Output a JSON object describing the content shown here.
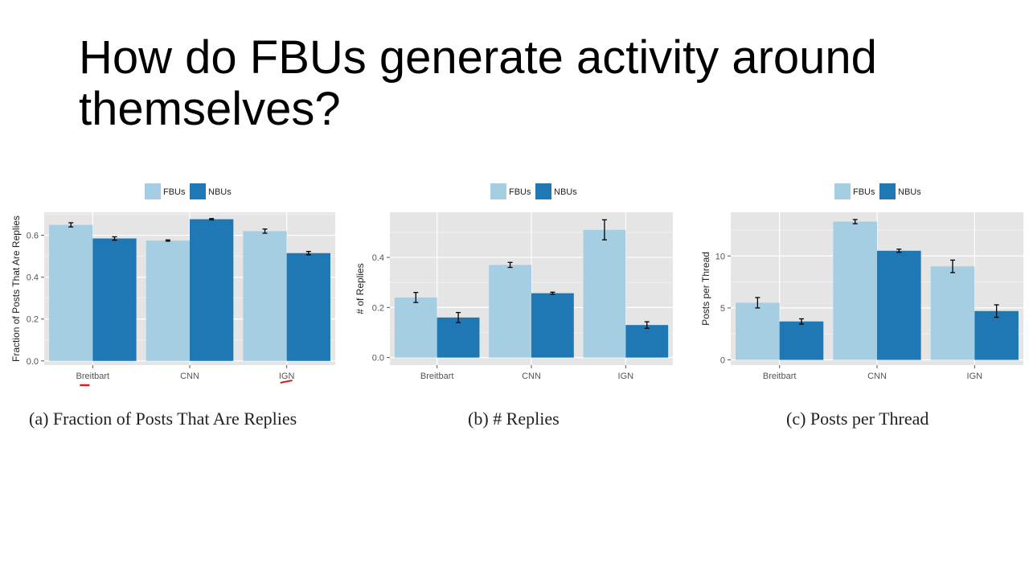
{
  "slide": {
    "title": "How do FBUs generate activity around themselves?"
  },
  "colors": {
    "fbu": "#a6cee3",
    "nbu": "#1f78b4",
    "panel_bg": "#e5e5e5",
    "grid": "#ffffff",
    "error_bar": "#000000",
    "annotation": "#e31a1c"
  },
  "chart_data": [
    {
      "type": "bar",
      "caption": "(a) Fraction of Posts That Are Replies",
      "ylabel": "Fraction of Posts That Are Replies",
      "xlabel": "",
      "categories": [
        "Breitbart",
        "CNN",
        "IGN"
      ],
      "legend": [
        "FBUs",
        "NBUs"
      ],
      "legend_position": "top",
      "ylim": [
        -0.02,
        0.71
      ],
      "yticks": [
        0.0,
        0.2,
        0.4,
        0.6
      ],
      "ytick_labels": [
        "0.0",
        "0.2",
        "0.4",
        "0.6"
      ],
      "grid": true,
      "series": [
        {
          "name": "FBUs",
          "values": [
            0.65,
            0.575,
            0.62
          ],
          "errors": [
            0.01,
            0.003,
            0.01
          ]
        },
        {
          "name": "NBUs",
          "values": [
            0.585,
            0.677,
            0.515
          ],
          "errors": [
            0.008,
            0.003,
            0.008
          ]
        }
      ],
      "annotations": [
        "red-underline Breitbart",
        "red-underline IGN"
      ]
    },
    {
      "type": "bar",
      "caption": "(b) # Replies",
      "ylabel": "# of Replies",
      "xlabel": "",
      "categories": [
        "Breitbart",
        "CNN",
        "IGN"
      ],
      "legend": [
        "FBUs",
        "NBUs"
      ],
      "legend_position": "top",
      "ylim": [
        -0.03,
        0.58
      ],
      "yticks": [
        0.0,
        0.2,
        0.4
      ],
      "ytick_labels": [
        "0.0",
        "0.2",
        "0.4"
      ],
      "grid": true,
      "series": [
        {
          "name": "FBUs",
          "values": [
            0.24,
            0.37,
            0.51
          ],
          "errors": [
            0.02,
            0.01,
            0.04
          ]
        },
        {
          "name": "NBUs",
          "values": [
            0.16,
            0.257,
            0.13
          ],
          "errors": [
            0.02,
            0.004,
            0.013
          ]
        }
      ]
    },
    {
      "type": "bar",
      "caption": "(c) Posts per Thread",
      "ylabel": "Posts per Thread",
      "xlabel": "",
      "categories": [
        "Breitbart",
        "CNN",
        "IGN"
      ],
      "legend": [
        "FBUs",
        "NBUs"
      ],
      "legend_position": "top",
      "ylim": [
        -0.5,
        14.2
      ],
      "yticks": [
        0,
        5,
        10
      ],
      "ytick_labels": [
        "0",
        "5",
        "10"
      ],
      "grid": true,
      "series": [
        {
          "name": "FBUs",
          "values": [
            5.5,
            13.3,
            9.0
          ],
          "errors": [
            0.5,
            0.2,
            0.6
          ]
        },
        {
          "name": "NBUs",
          "values": [
            3.7,
            10.5,
            4.7
          ],
          "errors": [
            0.25,
            0.15,
            0.6
          ]
        }
      ]
    }
  ]
}
